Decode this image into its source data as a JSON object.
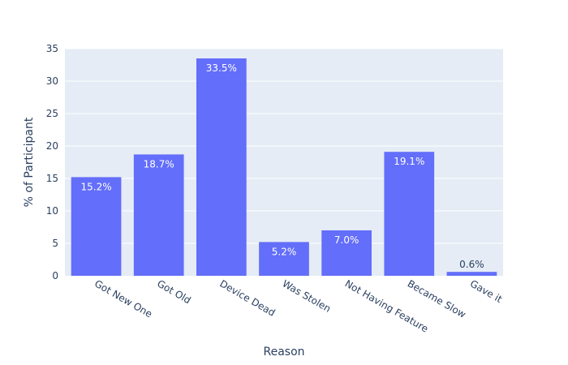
{
  "chart_data": {
    "type": "bar",
    "title": "",
    "xlabel": "Reason",
    "ylabel": "% of Participant",
    "categories": [
      "Got New One",
      "Got Old",
      "Device Dead",
      "Was Stolen",
      "Not Having Feature",
      "Became Slow",
      "Gave it"
    ],
    "values": [
      15.2,
      18.7,
      33.5,
      5.2,
      7.0,
      19.1,
      0.6
    ],
    "data_labels": [
      "15.2%",
      "18.7%",
      "33.5%",
      "5.2%",
      "7.0%",
      "19.1%",
      "0.6%"
    ],
    "ylim": [
      0,
      35
    ],
    "yticks": [
      0,
      5,
      10,
      15,
      20,
      25,
      30,
      35
    ],
    "grid": true,
    "legend": "none",
    "colors": {
      "bar": "#636efa",
      "plot_background": "#e5ecf6",
      "gridline": "#ffffff",
      "text": "#2a3f5f",
      "label_inside": "#ffffff"
    }
  }
}
